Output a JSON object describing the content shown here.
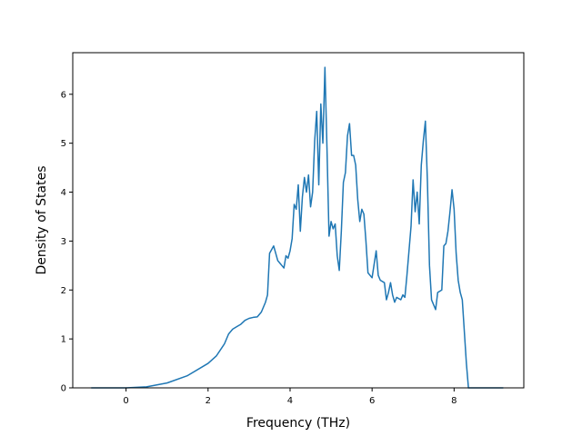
{
  "chart_data": {
    "type": "line",
    "title": "",
    "xlabel": "Frequency (THz)",
    "ylabel": "Density of States",
    "xlim": [
      -1.3,
      9.7
    ],
    "ylim": [
      0,
      6.85
    ],
    "xticks": [
      0,
      2,
      4,
      6,
      8
    ],
    "yticks": [
      0,
      1,
      2,
      3,
      4,
      5,
      6
    ],
    "grid": false,
    "legend": "none",
    "series": [
      {
        "color": "#1f77b4",
        "x": [
          -0.85,
          0.0,
          0.5,
          1.0,
          1.5,
          2.0,
          2.2,
          2.4,
          2.5,
          2.6,
          2.7,
          2.8,
          2.9,
          3.0,
          3.1,
          3.2,
          3.3,
          3.4,
          3.45,
          3.5,
          3.6,
          3.7,
          3.75,
          3.8,
          3.85,
          3.9,
          3.95,
          4.0,
          4.05,
          4.1,
          4.15,
          4.2,
          4.25,
          4.3,
          4.35,
          4.4,
          4.45,
          4.5,
          4.55,
          4.6,
          4.65,
          4.7,
          4.75,
          4.8,
          4.85,
          4.9,
          4.95,
          5.0,
          5.05,
          5.1,
          5.15,
          5.2,
          5.25,
          5.3,
          5.35,
          5.4,
          5.45,
          5.5,
          5.55,
          5.6,
          5.65,
          5.7,
          5.75,
          5.8,
          5.85,
          5.9,
          6.0,
          6.1,
          6.15,
          6.2,
          6.3,
          6.35,
          6.4,
          6.45,
          6.5,
          6.55,
          6.6,
          6.7,
          6.75,
          6.8,
          6.85,
          6.9,
          6.95,
          7.0,
          7.05,
          7.1,
          7.15,
          7.2,
          7.25,
          7.3,
          7.35,
          7.4,
          7.45,
          7.5,
          7.55,
          7.6,
          7.7,
          7.75,
          7.8,
          7.85,
          7.9,
          7.95,
          8.0,
          8.05,
          8.1,
          8.15,
          8.2,
          8.3,
          8.35,
          8.4,
          9.2
        ],
        "values": [
          0,
          0,
          0.02,
          0.1,
          0.25,
          0.5,
          0.65,
          0.9,
          1.1,
          1.2,
          1.25,
          1.3,
          1.38,
          1.42,
          1.44,
          1.45,
          1.55,
          1.75,
          1.9,
          2.75,
          2.9,
          2.6,
          2.55,
          2.5,
          2.45,
          2.7,
          2.65,
          2.8,
          3.05,
          3.75,
          3.65,
          4.15,
          3.2,
          3.9,
          4.3,
          4.0,
          4.35,
          3.7,
          4.0,
          5.05,
          5.65,
          4.15,
          5.8,
          5.0,
          6.55,
          4.9,
          3.1,
          3.4,
          3.25,
          3.35,
          2.7,
          2.4,
          3.2,
          4.2,
          4.4,
          5.15,
          5.4,
          4.75,
          4.75,
          4.55,
          3.85,
          3.4,
          3.65,
          3.55,
          3.0,
          2.35,
          2.25,
          2.8,
          2.3,
          2.2,
          2.15,
          1.8,
          1.95,
          2.15,
          1.9,
          1.75,
          1.85,
          1.8,
          1.9,
          1.85,
          2.3,
          2.8,
          3.3,
          4.25,
          3.6,
          4.0,
          3.35,
          4.55,
          5.05,
          5.45,
          4.2,
          2.5,
          1.8,
          1.7,
          1.6,
          1.95,
          2.0,
          2.9,
          2.95,
          3.2,
          3.6,
          4.05,
          3.65,
          2.75,
          2.2,
          1.95,
          1.8,
          0.5,
          0.0,
          0.0,
          0.0
        ]
      }
    ]
  }
}
